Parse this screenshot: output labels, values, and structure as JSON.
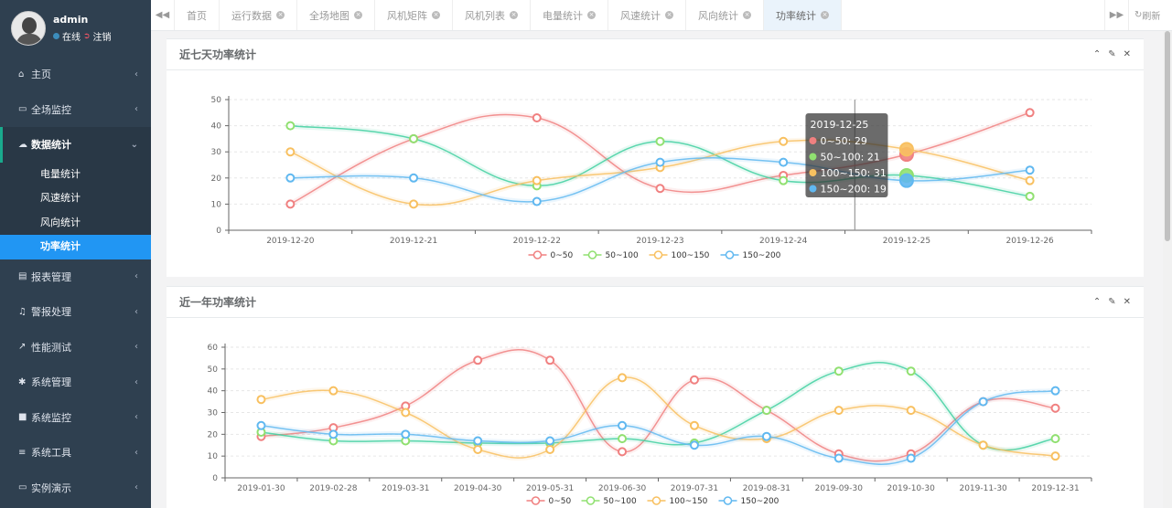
{
  "user": {
    "name": "admin",
    "online": "在线",
    "logout": "注销"
  },
  "sidebar": {
    "items": [
      {
        "icon": "home-icon",
        "glyph": "⌂",
        "label": "主页"
      },
      {
        "icon": "monitor-icon",
        "glyph": "▭",
        "label": "全场监控"
      },
      {
        "icon": "cloud-icon",
        "glyph": "☁",
        "label": "数据统计",
        "active": true
      },
      {
        "icon": "report-icon",
        "glyph": "▤",
        "label": "报表管理"
      },
      {
        "icon": "bell-icon",
        "glyph": "♫",
        "label": "警报处理"
      },
      {
        "icon": "line-chart-icon",
        "glyph": "↗",
        "label": "性能测试"
      },
      {
        "icon": "gear-icon",
        "glyph": "✱",
        "label": "系统管理"
      },
      {
        "icon": "video-icon",
        "glyph": "■",
        "label": "系统监控"
      },
      {
        "icon": "menu-icon",
        "glyph": "≡",
        "label": "系统工具"
      },
      {
        "icon": "desktop-icon",
        "glyph": "▭",
        "label": "实例演示"
      }
    ],
    "sub_items": [
      "电量统计",
      "风速统计",
      "风向统计",
      "功率统计"
    ]
  },
  "tabs": [
    "首页",
    "运行数据",
    "全场地图",
    "风机矩阵",
    "风机列表",
    "电量统计",
    "风速统计",
    "风向统计",
    "功率统计"
  ],
  "refresh_label": "刷新",
  "panels": {
    "weekly_title": "近七天功率统计",
    "yearly_title": "近一年功率统计"
  },
  "tooltip": {
    "date": "2019-12-25",
    "lines": [
      "0~50: 29",
      "50~100: 21",
      "100~150: 31",
      "150~200: 19"
    ]
  },
  "colors": {
    "s0": "#f08080",
    "s1": "#90e070",
    "s2": "#f8c060",
    "s3": "#60b8f0",
    "s1_curve": "#40d0a0"
  },
  "chart_data": [
    {
      "type": "line",
      "title": "近七天功率统计",
      "categories": [
        "2019-12-20",
        "2019-12-21",
        "2019-12-22",
        "2019-12-23",
        "2019-12-24",
        "2019-12-25",
        "2019-12-26"
      ],
      "ylim": [
        0,
        50
      ],
      "yticks": [
        0,
        10,
        20,
        30,
        40,
        50
      ],
      "grid": true,
      "legend": "bottom-center",
      "series": [
        {
          "name": "0~50",
          "values": [
            10,
            35,
            43,
            16,
            21,
            29,
            45
          ]
        },
        {
          "name": "50~100",
          "values": [
            40,
            35,
            17,
            34,
            19,
            21,
            13
          ]
        },
        {
          "name": "100~150",
          "values": [
            30,
            10,
            19,
            24,
            34,
            31,
            19
          ]
        },
        {
          "name": "150~200",
          "values": [
            20,
            20,
            11,
            26,
            26,
            19,
            23
          ]
        }
      ]
    },
    {
      "type": "line",
      "title": "近一年功率统计",
      "categories": [
        "2019-01-30",
        "2019-02-28",
        "2019-03-31",
        "2019-04-30",
        "2019-05-31",
        "2019-06-30",
        "2019-07-31",
        "2019-08-31",
        "2019-09-30",
        "2019-10-30",
        "2019-11-30",
        "2019-12-31"
      ],
      "ylim": [
        0,
        60
      ],
      "yticks": [
        0,
        10,
        20,
        30,
        40,
        50,
        60
      ],
      "grid": true,
      "legend": "bottom-center",
      "series": [
        {
          "name": "0~50",
          "values": [
            19,
            23,
            33,
            54,
            54,
            12,
            45,
            31,
            11,
            11,
            35,
            32
          ]
        },
        {
          "name": "50~100",
          "values": [
            21,
            17,
            17,
            16,
            16,
            18,
            16,
            31,
            49,
            49,
            15,
            18
          ]
        },
        {
          "name": "100~150",
          "values": [
            36,
            40,
            30,
            13,
            13,
            46,
            24,
            18,
            31,
            31,
            15,
            10
          ]
        },
        {
          "name": "150~200",
          "values": [
            24,
            20,
            20,
            17,
            17,
            24,
            15,
            19,
            9,
            9,
            35,
            40
          ]
        }
      ]
    }
  ]
}
